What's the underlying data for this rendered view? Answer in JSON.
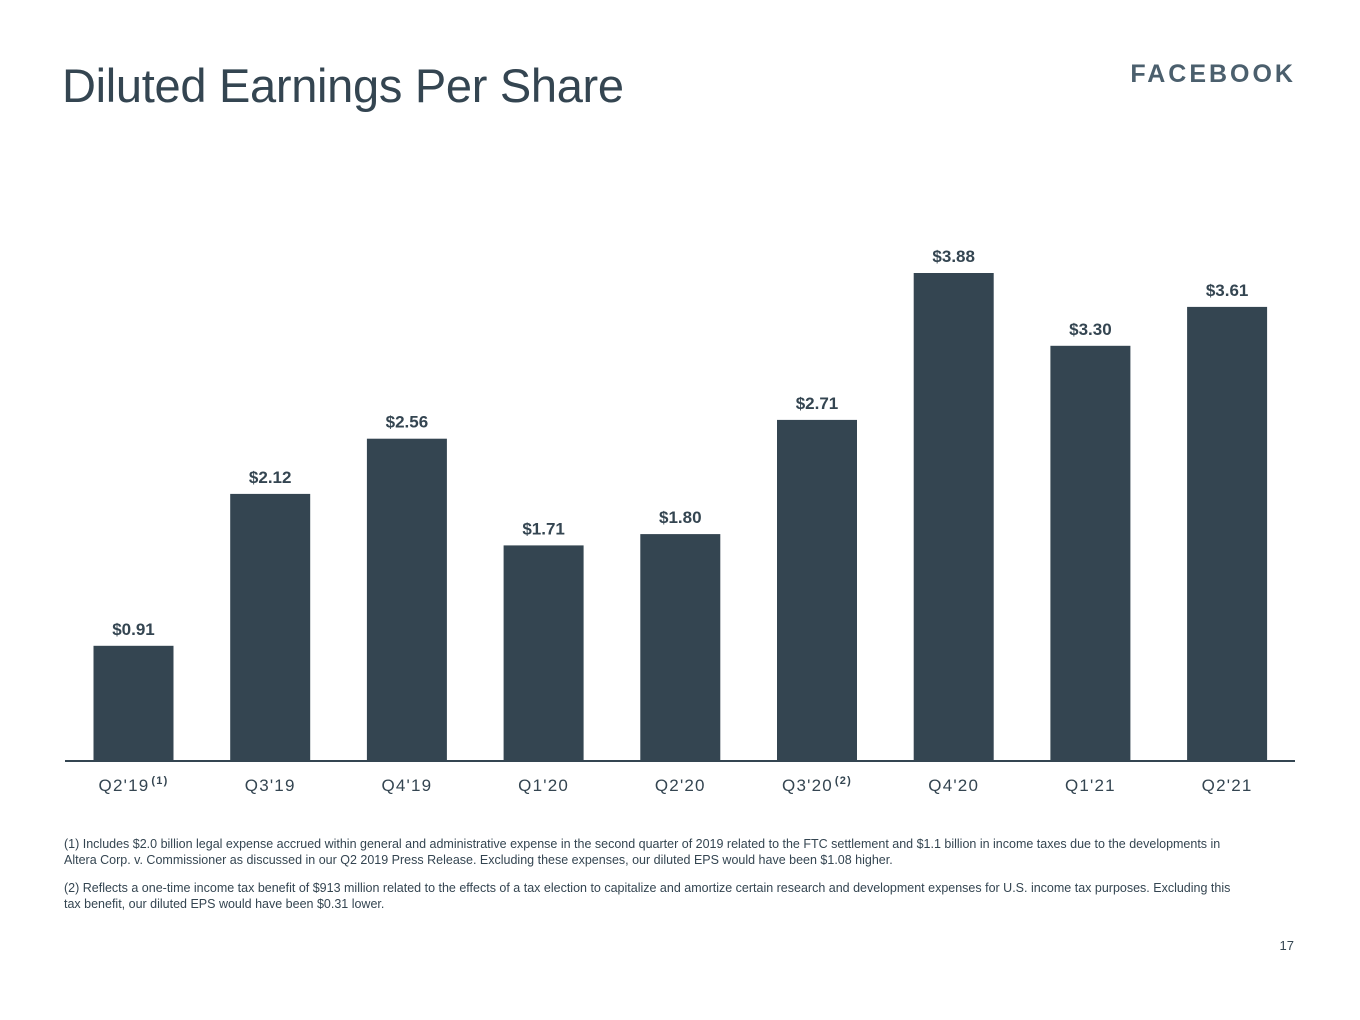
{
  "page": {
    "title": "Diluted Earnings Per Share",
    "logo_text": "FACEBOOK",
    "page_number": "17"
  },
  "footnotes": [
    "(1) Includes $2.0 billion legal expense accrued within general and administrative expense in the second quarter of 2019 related to the FTC settlement and $1.1 billion in income taxes due to the developments in Altera Corp. v. Commissioner as discussed in our Q2 2019 Press Release. Excluding these expenses, our diluted EPS would have been $1.08 higher.",
    "(2) Reflects a one-time income tax benefit of $913 million related to the effects of a tax election to capitalize and amortize certain research and development expenses for U.S. income tax purposes. Excluding this tax benefit, our diluted EPS would have been $0.31 lower."
  ],
  "chart_data": {
    "type": "bar",
    "title": "Diluted Earnings Per Share",
    "xlabel": "",
    "ylabel": "",
    "categories": [
      "Q2'19",
      "Q3'19",
      "Q4'19",
      "Q1'20",
      "Q2'20",
      "Q3'20",
      "Q4'20",
      "Q1'21",
      "Q2'21"
    ],
    "category_superscripts": [
      "(1)",
      "",
      "",
      "",
      "",
      "(2)",
      "",
      "",
      ""
    ],
    "values": [
      0.91,
      2.12,
      2.56,
      1.71,
      1.8,
      2.71,
      3.88,
      3.3,
      3.61
    ],
    "data_labels": [
      "$0.91",
      "$2.12",
      "$2.56",
      "$1.71",
      "$1.80",
      "$2.71",
      "$3.88",
      "$3.30",
      "$3.61"
    ],
    "ylim": [
      0,
      3.88
    ],
    "grid": false,
    "colors": {
      "bar": "#344551",
      "text": "#344551",
      "axis": "#344551"
    }
  }
}
